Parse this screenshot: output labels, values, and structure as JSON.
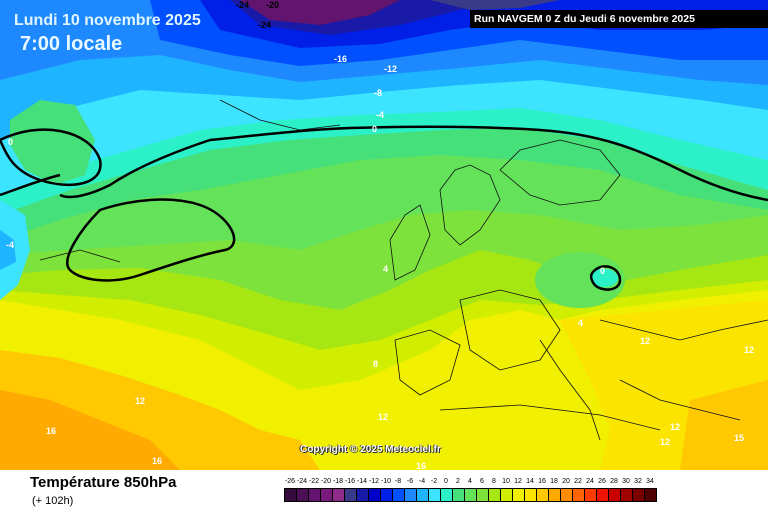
{
  "header": {
    "date": "Lundi 10 novembre 2025",
    "time": "7:00 locale",
    "run": "Run NAVGEM 0 Z du Jeudi 6 novembre 2025"
  },
  "copyright": "Copyright © 2025 Meteociel.fr",
  "footer": {
    "title": "Température 850hPa",
    "subtitle": "(+ 102h)"
  },
  "legend": {
    "labels": [
      "-26",
      "-24",
      "-22",
      "-20",
      "-18",
      "-16",
      "-14",
      "-12",
      "-10",
      "-8",
      "-6",
      "-4",
      "-2",
      "0",
      "2",
      "4",
      "6",
      "8",
      "10",
      "12",
      "14",
      "16",
      "18",
      "20",
      "22",
      "24",
      "26",
      "28",
      "30",
      "32",
      "34"
    ],
    "colors": [
      "#350a3c",
      "#4a0f55",
      "#63146f",
      "#7a1a7d",
      "#8e2c8c",
      "#3a3a8a",
      "#1a1aa8",
      "#0000c8",
      "#0020e8",
      "#0050ff",
      "#1e88ff",
      "#1eb4ff",
      "#3ce4ff",
      "#2cf0c8",
      "#46e07a",
      "#64e25a",
      "#7ee23c",
      "#a6e612",
      "#d2ee00",
      "#f0f000",
      "#fae400",
      "#ffc800",
      "#ffaa00",
      "#ff8c00",
      "#ff6400",
      "#ff3c00",
      "#f01400",
      "#c80000",
      "#a00000",
      "#780000",
      "#500000"
    ]
  },
  "isotherm_labels": [
    "-24",
    "-20",
    "-24",
    "-16",
    "-12",
    "-8",
    "-4",
    "0",
    "0",
    "-4",
    "4",
    "0",
    "4",
    "8",
    "12",
    "12",
    "12",
    "12",
    "16",
    "16",
    "12",
    "12",
    "15",
    "16"
  ]
}
